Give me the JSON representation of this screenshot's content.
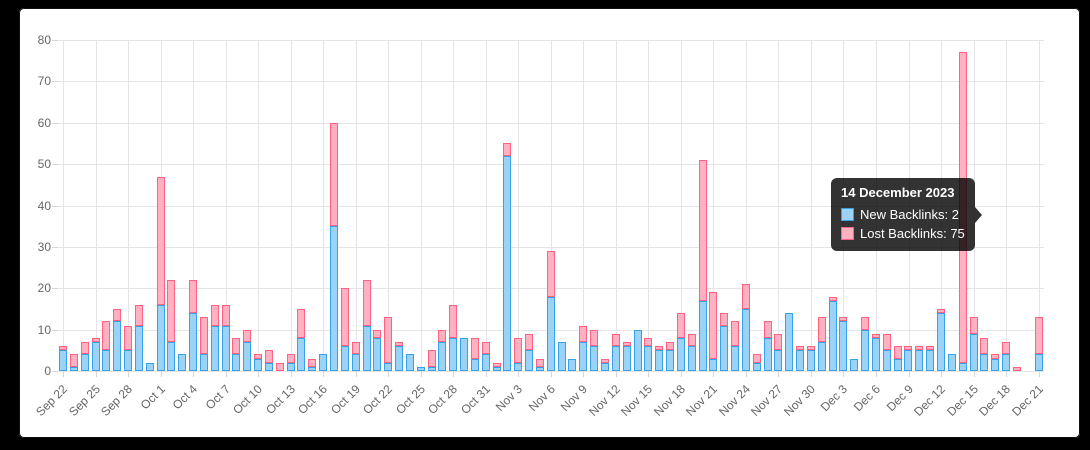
{
  "colors": {
    "page_background": "#000000",
    "panel_background": "#ffffff",
    "grid_line": "#e5e5e5",
    "tick_text": "#666666",
    "new_backlinks_fill": "#9cd2f5",
    "new_backlinks_border": "#36a2eb",
    "lost_backlinks_fill": "#ffb1c1",
    "lost_backlinks_border": "#ff6384",
    "tooltip_background": "rgba(0,0,0,0.8)"
  },
  "chart_data": {
    "type": "bar",
    "stacked": true,
    "grid": true,
    "legend": "hidden",
    "ylim": [
      0,
      80
    ],
    "y_ticks": [
      0,
      10,
      20,
      30,
      40,
      50,
      60,
      70,
      80
    ],
    "x_tick_labels": [
      "Sep 22",
      "Sep 25",
      "Sep 28",
      "Oct 1",
      "Oct 4",
      "Oct 7",
      "Oct 10",
      "Oct 13",
      "Oct 16",
      "Oct 19",
      "Oct 22",
      "Oct 25",
      "Oct 28",
      "Oct 31",
      "Nov 3",
      "Nov 6",
      "Nov 9",
      "Nov 12",
      "Nov 15",
      "Nov 18",
      "Nov 21",
      "Nov 24",
      "Nov 27",
      "Nov 30",
      "Dec 3",
      "Dec 6",
      "Dec 9",
      "Dec 12",
      "Dec 15",
      "Dec 18",
      "Dec 21"
    ],
    "x_label_every": 3,
    "categories": [
      "Sep 22",
      "Sep 23",
      "Sep 24",
      "Sep 25",
      "Sep 26",
      "Sep 27",
      "Sep 28",
      "Sep 29",
      "Sep 30",
      "Oct 1",
      "Oct 2",
      "Oct 3",
      "Oct 4",
      "Oct 5",
      "Oct 6",
      "Oct 7",
      "Oct 8",
      "Oct 9",
      "Oct 10",
      "Oct 11",
      "Oct 12",
      "Oct 13",
      "Oct 14",
      "Oct 15",
      "Oct 16",
      "Oct 17",
      "Oct 18",
      "Oct 19",
      "Oct 20",
      "Oct 21",
      "Oct 22",
      "Oct 23",
      "Oct 24",
      "Oct 25",
      "Oct 26",
      "Oct 27",
      "Oct 28",
      "Oct 29",
      "Oct 30",
      "Oct 31",
      "Nov 1",
      "Nov 2",
      "Nov 3",
      "Nov 4",
      "Nov 5",
      "Nov 6",
      "Nov 7",
      "Nov 8",
      "Nov 9",
      "Nov 10",
      "Nov 11",
      "Nov 12",
      "Nov 13",
      "Nov 14",
      "Nov 15",
      "Nov 16",
      "Nov 17",
      "Nov 18",
      "Nov 19",
      "Nov 20",
      "Nov 21",
      "Nov 22",
      "Nov 23",
      "Nov 24",
      "Nov 25",
      "Nov 26",
      "Nov 27",
      "Nov 28",
      "Nov 29",
      "Nov 30",
      "Dec 1",
      "Dec 2",
      "Dec 3",
      "Dec 4",
      "Dec 5",
      "Dec 6",
      "Dec 7",
      "Dec 8",
      "Dec 9",
      "Dec 10",
      "Dec 11",
      "Dec 12",
      "Dec 13",
      "Dec 14",
      "Dec 15",
      "Dec 16",
      "Dec 17",
      "Dec 18",
      "Dec 19",
      "Dec 20",
      "Dec 21"
    ],
    "series": [
      {
        "name": "New Backlinks",
        "fill": "#9cd2f5",
        "border": "#36a2eb",
        "values": [
          5,
          1,
          4,
          7,
          5,
          12,
          5,
          11,
          2,
          16,
          7,
          4,
          14,
          4,
          11,
          11,
          4,
          7,
          3,
          2,
          0,
          2,
          8,
          1,
          4,
          35,
          6,
          4,
          11,
          8,
          2,
          6,
          4,
          1,
          1,
          7,
          8,
          8,
          3,
          4,
          1,
          52,
          2,
          5,
          1,
          18,
          7,
          3,
          7,
          6,
          2,
          6,
          6,
          10,
          6,
          5,
          5,
          8,
          6,
          17,
          3,
          11,
          6,
          15,
          2,
          8,
          5,
          14,
          5,
          5,
          7,
          17,
          12,
          3,
          10,
          8,
          5,
          3,
          5,
          5,
          5,
          14,
          4,
          2,
          9,
          4,
          3,
          4,
          0,
          0,
          4
        ]
      },
      {
        "name": "Lost Backlinks",
        "fill": "#ffb1c1",
        "border": "#ff6384",
        "values": [
          1,
          3,
          3,
          1,
          7,
          3,
          6,
          5,
          0,
          31,
          15,
          0,
          8,
          9,
          5,
          5,
          4,
          3,
          1,
          3,
          2,
          2,
          7,
          2,
          0,
          25,
          14,
          3,
          11,
          2,
          11,
          1,
          0,
          0,
          4,
          3,
          8,
          0,
          5,
          3,
          1,
          3,
          6,
          4,
          2,
          11,
          0,
          0,
          4,
          4,
          1,
          3,
          1,
          0,
          2,
          1,
          2,
          6,
          3,
          34,
          16,
          3,
          6,
          6,
          2,
          4,
          4,
          0,
          1,
          1,
          6,
          1,
          1,
          0,
          3,
          1,
          4,
          3,
          1,
          1,
          1,
          1,
          0,
          75,
          4,
          4,
          1,
          3,
          1,
          0,
          9
        ]
      }
    ]
  },
  "tooltip": {
    "title": "14 December 2023",
    "anchor_category": "Dec 14",
    "rows": [
      {
        "label": "New Backlinks",
        "value": "2"
      },
      {
        "label": "Lost Backlinks",
        "value": "75"
      }
    ]
  }
}
